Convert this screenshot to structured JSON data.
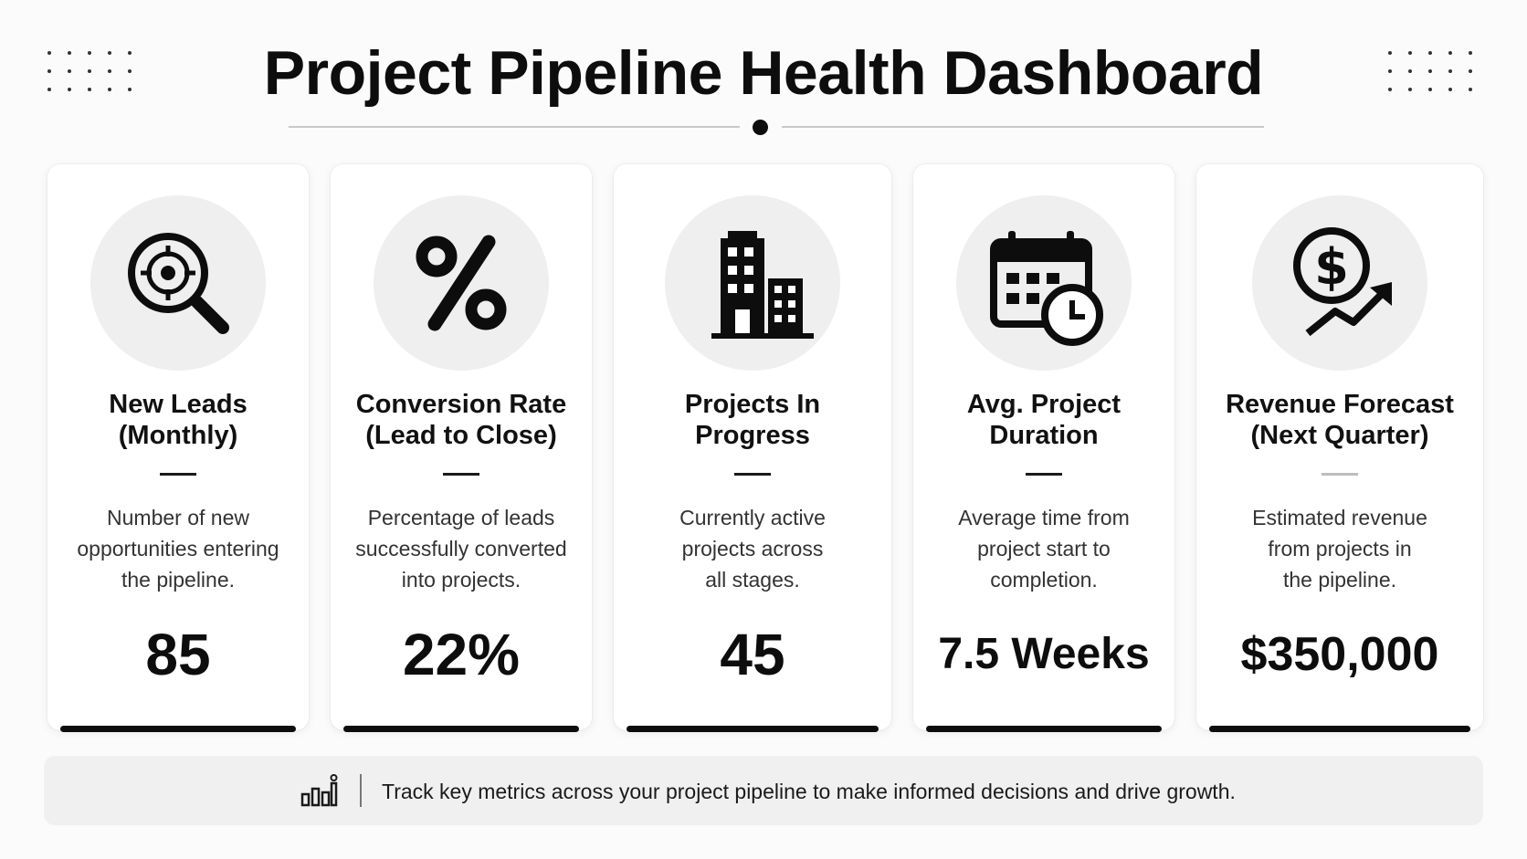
{
  "header": {
    "title": "Project Pipeline Health Dashboard"
  },
  "cards": [
    {
      "icon": "target-search-icon",
      "label": "New Leads\n(Monthly)",
      "description": "Number of new\nopportunities entering\nthe pipeline.",
      "value": "85"
    },
    {
      "icon": "percent-icon",
      "label": "Conversion Rate\n(Lead to Close)",
      "description": "Percentage of leads\nsuccessfully converted\ninto projects.",
      "value": "22%"
    },
    {
      "icon": "buildings-icon",
      "label": "Projects In\nProgress",
      "description": "Currently active\nprojects across\nall stages.",
      "value": "45"
    },
    {
      "icon": "calendar-clock-icon",
      "label": "Avg. Project\nDuration",
      "description": "Average time from\nproject start to\ncompletion.",
      "value": "7.5 Weeks"
    },
    {
      "icon": "dollar-growth-icon",
      "label": "Revenue Forecast\n(Next Quarter)",
      "description": "Estimated revenue\nfrom projects in\nthe pipeline.",
      "value": "$350,000"
    }
  ],
  "footer": {
    "icon": "bar-chart-icon",
    "text": "Track key metrics across your project pipeline to make informed decisions and drive growth."
  },
  "colors": {
    "background": "#fbfbfb",
    "card": "#ffffff",
    "accent": "#0d0d0d",
    "icon_circle": "#efefef",
    "footer": "#f0f0f0"
  }
}
